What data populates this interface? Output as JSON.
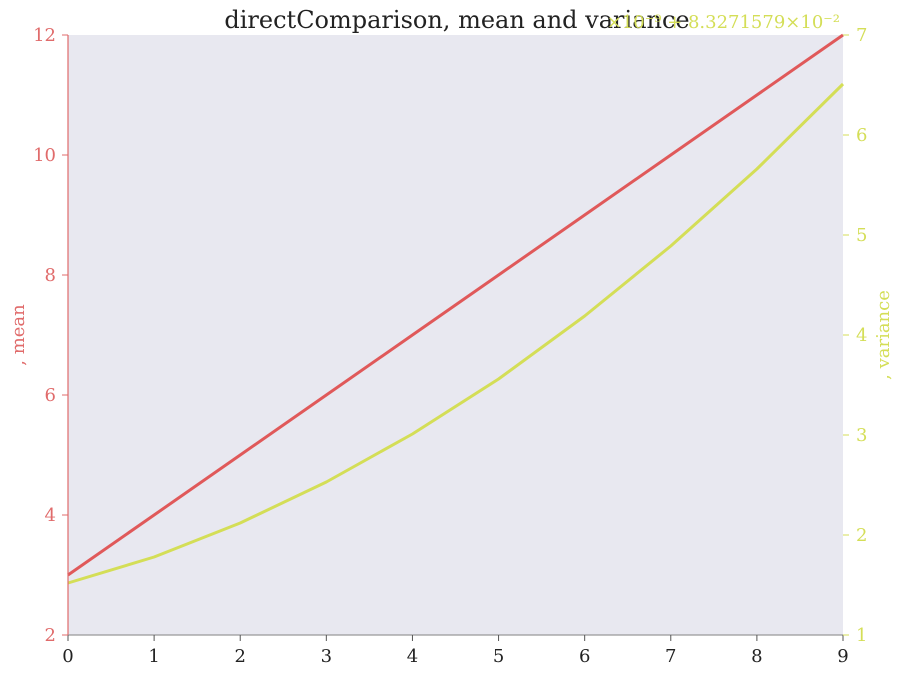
{
  "chart_data": {
    "type": "line",
    "title": "directComparison, mean and variance",
    "x": [
      0,
      1,
      2,
      3,
      4,
      5,
      6,
      7,
      8,
      9
    ],
    "xlim": [
      0,
      9
    ],
    "x_ticks": [
      "0",
      "1",
      "2",
      "3",
      "4",
      "5",
      "6",
      "7",
      "8",
      "9"
    ],
    "series": [
      {
        "name": "mean",
        "axis": "left",
        "color": "#e0595a",
        "values": [
          3,
          4,
          5,
          6,
          7,
          8,
          9,
          10,
          11,
          12
        ]
      },
      {
        "name": "variance",
        "axis": "right",
        "color": "#d4de57",
        "values": [
          1.52,
          1.78,
          2.12,
          2.53,
          3.01,
          3.56,
          4.19,
          4.89,
          5.66,
          6.51
        ]
      }
    ],
    "y_left": {
      "label": ", mean",
      "ylim": [
        2,
        12
      ],
      "ticks": [
        "2",
        "4",
        "6",
        "8",
        "10",
        "12"
      ],
      "color": "#e06b6b"
    },
    "y_right": {
      "label": ", variance",
      "ylim": [
        1,
        7
      ],
      "ticks": [
        "1",
        "2",
        "3",
        "4",
        "5",
        "6",
        "7"
      ],
      "offset_text": "×10⁻⁹ + 8.3271579×10⁻²",
      "color": "#d4de57"
    },
    "plot_background": "#e8e8f0",
    "grid": false,
    "legend": "none"
  }
}
